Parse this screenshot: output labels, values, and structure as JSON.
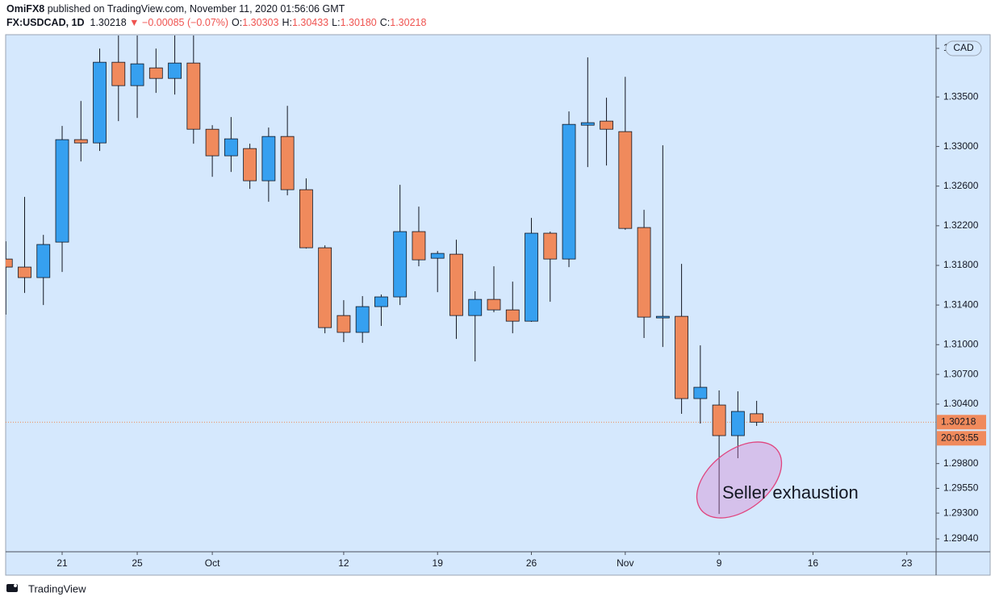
{
  "header": {
    "publisher": "OmiFX8",
    "published": "published on TradingView.com, November 11, 2020 01:56:06 GMT",
    "symbol": "FX:USDCAD, 1D",
    "last": "1.30218",
    "change": "▼ −0.00085 (−0.07%)",
    "ohlc": [
      {
        "label": "O:",
        "value": "1.30303"
      },
      {
        "label": "H:",
        "value": "1.30433"
      },
      {
        "label": "L:",
        "value": "1.30180"
      },
      {
        "label": "C:",
        "value": "1.30218"
      }
    ]
  },
  "footer": "TradingView",
  "chart_data": {
    "type": "candlestick",
    "currency": "CAD",
    "up_color": "#36a0f0",
    "down_color": "#f08a5c",
    "grid": true,
    "x": [
      0,
      1,
      2,
      3,
      4,
      5,
      6,
      7,
      8,
      9,
      10,
      11,
      12,
      13,
      14,
      15,
      16,
      17,
      18,
      19,
      20,
      21,
      22,
      23,
      24,
      25,
      26,
      27,
      28,
      29,
      30,
      31,
      32,
      33,
      34,
      35,
      36,
      37,
      38,
      39,
      40
    ],
    "open": [
      1.31864,
      1.31783,
      1.31677,
      1.32035,
      1.33069,
      1.33036,
      1.3385,
      1.33614,
      1.33793,
      1.33687,
      1.33842,
      1.33174,
      1.32906,
      1.32979,
      1.32654,
      1.33101,
      1.32564,
      1.31978,
      1.31294,
      1.31124,
      1.31384,
      1.31482,
      1.32141,
      1.31872,
      1.31913,
      1.31294,
      1.31457,
      1.31351,
      1.31237,
      1.32125,
      1.31864,
      1.33215,
      1.33256,
      1.3315,
      1.32182,
      1.3127,
      1.31286,
      1.30456,
      1.30391,
      1.30082,
      1.30303
    ],
    "high": [
      1.32043,
      1.32491,
      1.32108,
      1.33207,
      1.33459,
      1.33988,
      1.34151,
      1.34192,
      1.33988,
      1.3415,
      1.3415,
      1.33215,
      1.33297,
      1.33028,
      1.33191,
      1.3341,
      1.32678,
      1.32002,
      1.31449,
      1.3149,
      1.31506,
      1.32613,
      1.32393,
      1.31945,
      1.32059,
      1.31539,
      1.31791,
      1.31636,
      1.32279,
      1.32141,
      1.33354,
      1.33899,
      1.33492,
      1.33703,
      1.32361,
      1.33012,
      1.31815,
      1.30993,
      1.30538,
      1.30529,
      1.30433
    ],
    "low": [
      1.31303,
      1.31522,
      1.314,
      1.31734,
      1.32849,
      1.32955,
      1.33256,
      1.33288,
      1.33541,
      1.33524,
      1.33028,
      1.32694,
      1.32743,
      1.32572,
      1.32442,
      1.32507,
      1.3197,
      1.31115,
      1.31026,
      1.31018,
      1.31189,
      1.314,
      1.31791,
      1.3153,
      1.31058,
      1.30831,
      1.31327,
      1.31115,
      1.3123,
      1.31433,
      1.31783,
      1.32792,
      1.32808,
      1.3216,
      1.31067,
      1.30977,
      1.30302,
      1.30204,
      1.29292,
      1.29854,
      1.3018
    ],
    "close": [
      1.31783,
      1.31677,
      1.32011,
      1.33069,
      1.33036,
      1.3385,
      1.33614,
      1.33834,
      1.33687,
      1.33842,
      1.33174,
      1.32906,
      1.33077,
      1.32654,
      1.33101,
      1.32564,
      1.31978,
      1.31172,
      1.31124,
      1.31384,
      1.31482,
      1.32141,
      1.31856,
      1.31921,
      1.31294,
      1.31457,
      1.31351,
      1.31237,
      1.32125,
      1.31864,
      1.33223,
      1.3324,
      1.33174,
      1.32173,
      1.31278,
      1.31286,
      1.30456,
      1.3057,
      1.30082,
      1.30326,
      1.30218
    ],
    "xlim": [
      -0.01,
      49.56
    ],
    "xticks": [
      {
        "value": 3,
        "label": "21"
      },
      {
        "value": 7,
        "label": "25"
      },
      {
        "value": 11,
        "label": "Oct"
      },
      {
        "value": 18,
        "label": "12"
      },
      {
        "value": 23,
        "label": "19"
      },
      {
        "value": 28,
        "label": "26"
      },
      {
        "value": 33,
        "label": "Nov"
      },
      {
        "value": 38,
        "label": "9"
      },
      {
        "value": 43,
        "label": "16"
      },
      {
        "value": 48,
        "label": "23"
      }
    ],
    "ylim": [
      1.2891,
      1.3412
    ],
    "yticks": [
      {
        "value": 1.3399,
        "label": "1"
      },
      {
        "value": 1.335,
        "label": "1.33500"
      },
      {
        "value": 1.33,
        "label": "1.33000"
      },
      {
        "value": 1.326,
        "label": "1.32600"
      },
      {
        "value": 1.322,
        "label": "1.32200"
      },
      {
        "value": 1.318,
        "label": "1.31800"
      },
      {
        "value": 1.314,
        "label": "1.31400"
      },
      {
        "value": 1.31,
        "label": "1.31000"
      },
      {
        "value": 1.307,
        "label": "1.30700"
      },
      {
        "value": 1.304,
        "label": "1.30400"
      },
      {
        "value": 1.298,
        "label": "1.29800"
      },
      {
        "value": 1.2955,
        "label": "1.29550"
      },
      {
        "value": 1.293,
        "label": "1.29300"
      },
      {
        "value": 1.2904,
        "label": "1.29040"
      }
    ],
    "last_price": {
      "value": 1.30218,
      "label": "1.30218"
    },
    "countdown": "20:03:55",
    "annotation": "Seller exhaustion"
  }
}
